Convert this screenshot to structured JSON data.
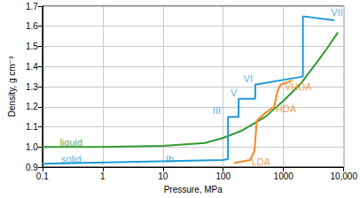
{
  "chart_data": {
    "type": "line",
    "xlabel": "Pressure, MPa",
    "ylabel": "Density, g cm⁻³",
    "log": "x",
    "grid": true,
    "xlim": [
      0.1,
      10000
    ],
    "xticks": [
      0.1,
      1,
      10,
      100,
      1000,
      {
        "value": 10000,
        "label": "10,000"
      }
    ],
    "ylim": [
      0.9,
      1.7
    ],
    "yticks": [
      0.9,
      {
        "value": 1,
        "label": "1.0"
      },
      1.1,
      1.2,
      1.3,
      1.4,
      1.5,
      1.6,
      1.7
    ],
    "series": [
      {
        "color": "#339933",
        "x": [
          0.1,
          1,
          10,
          50,
          100,
          200,
          500,
          1000,
          2000,
          5000,
          8000
        ],
        "values": [
          1.0,
          1.0,
          1.005,
          1.02,
          1.045,
          1.08,
          1.15,
          1.23,
          1.32,
          1.48,
          1.57
        ]
      },
      {
        "color": "#1f9ad6",
        "x": [
          0.1,
          100,
          120,
          120,
          180,
          180,
          340,
          340,
          2100,
          2100,
          7000
        ],
        "values": [
          0.917,
          0.935,
          0.94,
          1.15,
          1.15,
          1.24,
          1.24,
          1.31,
          1.35,
          1.65,
          1.63
        ]
      },
      {
        "color": "#f08a24",
        "x": [
          150,
          280,
          330,
          360,
          500,
          700,
          800,
          900,
          1400
        ],
        "values": [
          0.92,
          0.935,
          0.98,
          1.13,
          1.17,
          1.2,
          1.28,
          1.31,
          1.33
        ]
      }
    ],
    "annotations": [
      {
        "text": "liquid",
        "x": 0.3,
        "y": 1.025,
        "color": "#339933"
      },
      {
        "text": "solid",
        "x": 0.3,
        "y": 0.94,
        "color": "#1f9ad6"
      },
      {
        "text": "Ih",
        "x": 13,
        "y": 0.94,
        "color": "#1f9ad6"
      },
      {
        "text": "III",
        "x": 78,
        "y": 1.18,
        "color": "#1f9ad6"
      },
      {
        "text": "V",
        "x": 150,
        "y": 1.27,
        "color": "#1f9ad6"
      },
      {
        "text": "VI",
        "x": 260,
        "y": 1.34,
        "color": "#1f9ad6"
      },
      {
        "text": "VII",
        "x": 7700,
        "y": 1.67,
        "color": "#1f9ad6"
      },
      {
        "text": "LDA",
        "x": 420,
        "y": 0.925,
        "color": "#f08a24"
      },
      {
        "text": "HDA",
        "x": 1100,
        "y": 1.19,
        "color": "#f08a24"
      },
      {
        "text": "VHDA",
        "x": 1750,
        "y": 1.3,
        "color": "#f08a24"
      }
    ]
  }
}
